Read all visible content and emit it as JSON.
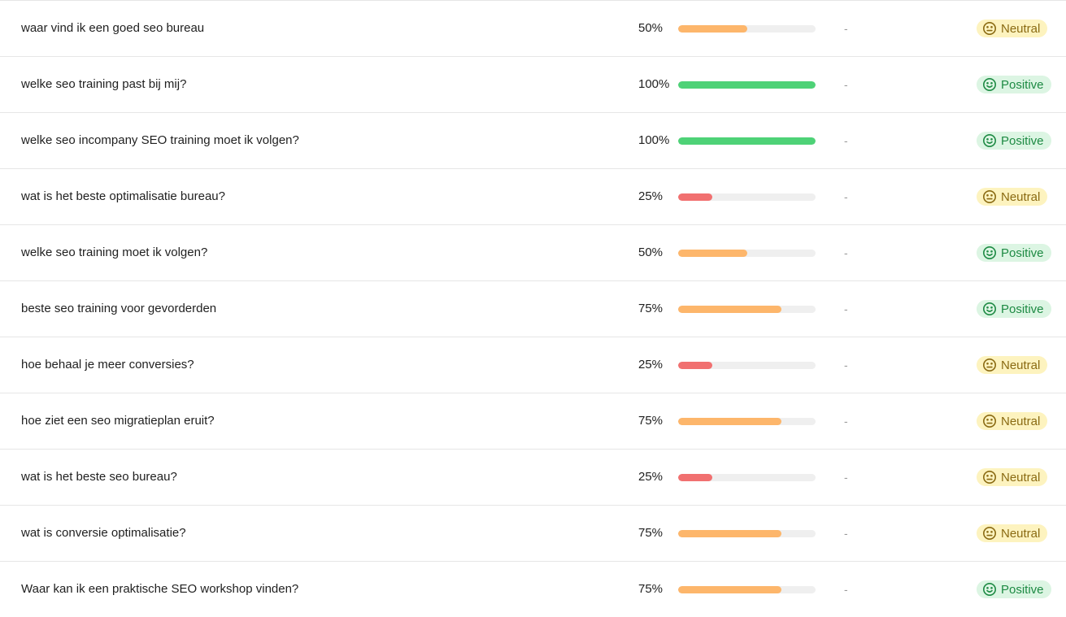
{
  "colors": {
    "bar_green": "#4ed277",
    "bar_orange": "#fdb66b",
    "bar_red": "#f17070",
    "neutral_bg": "#fdf3bf",
    "neutral_fg": "#8a6a12",
    "positive_bg": "#dcf5e3",
    "positive_fg": "#1d8a43"
  },
  "rows": [
    {
      "query": "waar vind ik een goed seo bureau",
      "score_label": "50%",
      "score": 50,
      "bar_color": "orange",
      "extra": "-",
      "sentiment": "Neutral",
      "sentiment_icon": "neutral-face-icon"
    },
    {
      "query": "welke seo training past bij mij?",
      "score_label": "100%",
      "score": 100,
      "bar_color": "green",
      "extra": "-",
      "sentiment": "Positive",
      "sentiment_icon": "smile-face-icon"
    },
    {
      "query": "welke seo incompany SEO training moet ik volgen?",
      "score_label": "100%",
      "score": 100,
      "bar_color": "green",
      "extra": "-",
      "sentiment": "Positive",
      "sentiment_icon": "smile-face-icon"
    },
    {
      "query": "wat is het beste optimalisatie bureau?",
      "score_label": "25%",
      "score": 25,
      "bar_color": "red",
      "extra": "-",
      "sentiment": "Neutral",
      "sentiment_icon": "neutral-face-icon"
    },
    {
      "query": "welke seo training moet ik volgen?",
      "score_label": "50%",
      "score": 50,
      "bar_color": "orange",
      "extra": "-",
      "sentiment": "Positive",
      "sentiment_icon": "smile-face-icon"
    },
    {
      "query": "beste seo training voor gevorderden",
      "score_label": "75%",
      "score": 75,
      "bar_color": "orange",
      "extra": "-",
      "sentiment": "Positive",
      "sentiment_icon": "smile-face-icon"
    },
    {
      "query": "hoe behaal je meer conversies?",
      "score_label": "25%",
      "score": 25,
      "bar_color": "red",
      "extra": "-",
      "sentiment": "Neutral",
      "sentiment_icon": "neutral-face-icon"
    },
    {
      "query": "hoe ziet een seo migratieplan eruit?",
      "score_label": "75%",
      "score": 75,
      "bar_color": "orange",
      "extra": "-",
      "sentiment": "Neutral",
      "sentiment_icon": "neutral-face-icon"
    },
    {
      "query": "wat is het beste seo bureau?",
      "score_label": "25%",
      "score": 25,
      "bar_color": "red",
      "extra": "-",
      "sentiment": "Neutral",
      "sentiment_icon": "neutral-face-icon"
    },
    {
      "query": "wat is conversie optimalisatie?",
      "score_label": "75%",
      "score": 75,
      "bar_color": "orange",
      "extra": "-",
      "sentiment": "Neutral",
      "sentiment_icon": "neutral-face-icon"
    },
    {
      "query": "Waar kan ik een praktische SEO workshop vinden?",
      "score_label": "75%",
      "score": 75,
      "bar_color": "orange",
      "extra": "-",
      "sentiment": "Positive",
      "sentiment_icon": "smile-face-icon"
    }
  ]
}
